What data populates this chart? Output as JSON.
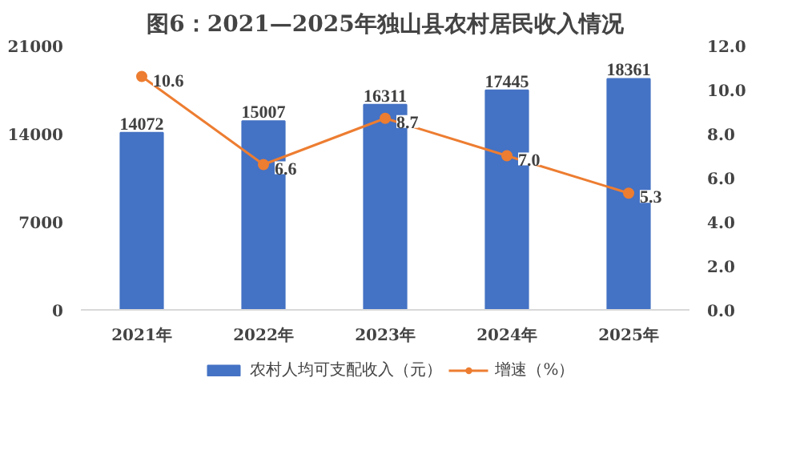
{
  "chart_data": {
    "type": "bar",
    "title": "图6：2021—2025年独山县农村居民收入情况",
    "categories": [
      "2021年",
      "2022年",
      "2023年",
      "2024年",
      "2025年"
    ],
    "series": [
      {
        "name": "农村人均可支配收入（元）",
        "color": "#4472c4",
        "values": [
          14072,
          15007,
          16311,
          17445,
          18361
        ]
      },
      {
        "name": "增速（%）",
        "type": "line",
        "axis": "y2",
        "color": "#ed7d31",
        "marker": "circle",
        "values": [
          10.6,
          6.6,
          8.7,
          7.0,
          5.3
        ],
        "value_labels": [
          "10.6",
          "6.6",
          "8.7",
          "7.0",
          "5.3"
        ]
      }
    ],
    "ylim": [
      0,
      21000
    ],
    "yticks": [
      0,
      7000,
      14000,
      21000
    ],
    "y2lim": [
      0,
      12
    ],
    "y2ticks": [
      {
        "value": 0,
        "label": "0.0"
      },
      {
        "value": 2,
        "label": "2.0"
      },
      {
        "value": 4,
        "label": "4.0"
      },
      {
        "value": 6,
        "label": "6.0"
      },
      {
        "value": 8,
        "label": "8.0"
      },
      {
        "value": 10,
        "label": "10.0"
      },
      {
        "value": 12,
        "label": "12.0"
      }
    ],
    "data_labels": true,
    "legend": "bottom",
    "grid": false
  }
}
